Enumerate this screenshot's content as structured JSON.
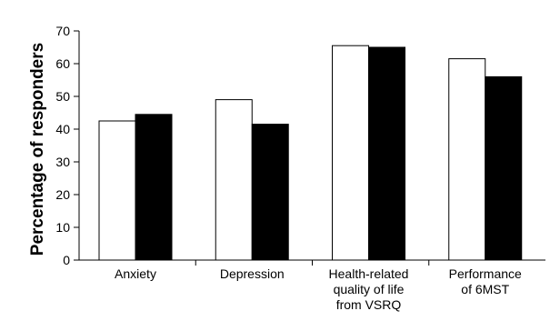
{
  "chart_data": {
    "type": "bar",
    "title": "",
    "xlabel": "",
    "ylabel": "Percentage of responders",
    "ylim": [
      0,
      70
    ],
    "yticks": [
      0,
      10,
      20,
      30,
      40,
      50,
      60,
      70
    ],
    "grid": false,
    "legend": "none",
    "categories": [
      [
        "Anxiety"
      ],
      [
        "Depression"
      ],
      [
        "Health-related",
        "quality of life",
        "from VSRQ"
      ],
      [
        "Performance",
        "of 6MST"
      ]
    ],
    "series": [
      {
        "values": [
          42.5,
          49,
          65.5,
          61.5
        ],
        "color": "#ffffff"
      },
      {
        "values": [
          44.5,
          41.5,
          65,
          56
        ],
        "color": "#000000"
      }
    ]
  }
}
